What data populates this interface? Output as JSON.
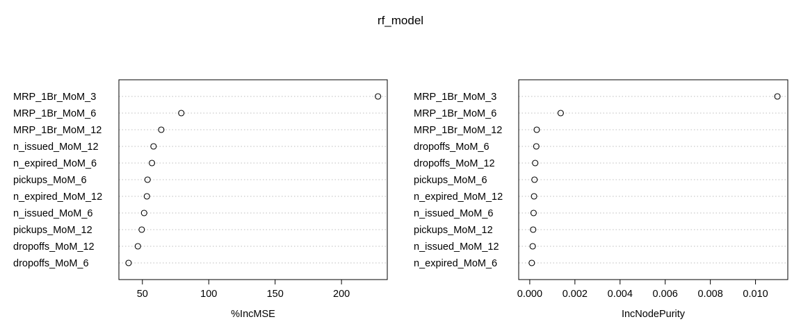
{
  "figure": {
    "title": "rf_model"
  },
  "colors": {
    "axis": "#000000",
    "point_stroke": "#000000",
    "dotted_guide": "#bdbdbd"
  },
  "chart_data": [
    {
      "type": "scatter",
      "title": "",
      "xlabel": "%IncMSE",
      "ylabel": "",
      "grid": false,
      "xlim": [
        32.3,
        234.5
      ],
      "xticks": [
        50,
        100,
        150,
        200
      ],
      "xtick_labels": [
        "50",
        "100",
        "150",
        "200"
      ],
      "categories": [
        "MRP_1Br_MoM_3",
        "MRP_1Br_MoM_6",
        "MRP_1Br_MoM_12",
        "n_issued_MoM_12",
        "n_expired_MoM_6",
        "pickups_MoM_6",
        "n_expired_MoM_12",
        "n_issued_MoM_6",
        "pickups_MoM_12",
        "dropoffs_MoM_12",
        "dropoffs_MoM_6"
      ],
      "values": [
        227.5,
        79.3,
        64.2,
        58.4,
        57.2,
        53.9,
        53.4,
        51.3,
        49.5,
        46.6,
        39.6
      ]
    },
    {
      "type": "scatter",
      "title": "",
      "xlabel": "IncNodePurity",
      "ylabel": "",
      "grid": false,
      "xlim": [
        -0.00049,
        0.01143
      ],
      "xticks": [
        0.0,
        0.002,
        0.004,
        0.006,
        0.008,
        0.01
      ],
      "xtick_labels": [
        "0.000",
        "0.002",
        "0.004",
        "0.006",
        "0.008",
        "0.010"
      ],
      "categories": [
        "MRP_1Br_MoM_3",
        "MRP_1Br_MoM_6",
        "MRP_1Br_MoM_12",
        "dropoffs_MoM_6",
        "dropoffs_MoM_12",
        "pickups_MoM_6",
        "n_expired_MoM_12",
        "n_issued_MoM_6",
        "pickups_MoM_12",
        "n_issued_MoM_12",
        "n_expired_MoM_6"
      ],
      "values": [
        0.01097,
        0.00137,
        0.00031,
        0.00029,
        0.00024,
        0.00021,
        0.00019,
        0.00017,
        0.00015,
        0.00013,
        9e-05
      ]
    }
  ]
}
